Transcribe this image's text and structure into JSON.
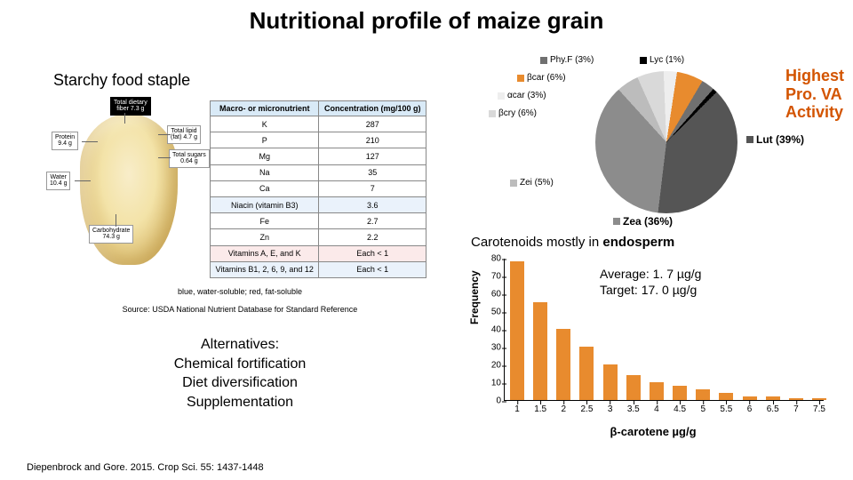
{
  "title": "Nutritional profile of maize grain",
  "subheading_left": "Starchy food staple",
  "kernel_tags": {
    "total_fiber": {
      "label": "Total dietary\nfiber 7.3 g",
      "cls": "black"
    },
    "protein": {
      "label": "Protein\n9.4 g"
    },
    "water": {
      "label": "Water\n10.4 g"
    },
    "total_lipid": {
      "label": "Total lipid\n(fat) 4.7 g"
    },
    "total_sugars": {
      "label": "Total sugars\n0.64 g"
    },
    "carbohydrate": {
      "label": "Carbohydrate\n74.3 g"
    }
  },
  "nutrient_table": {
    "headers": [
      "Macro- or micronutrient",
      "Concentration (mg/100 g)"
    ],
    "rows": [
      {
        "cells": [
          "K",
          "287"
        ],
        "cls": ""
      },
      {
        "cells": [
          "P",
          "210"
        ],
        "cls": ""
      },
      {
        "cells": [
          "Mg",
          "127"
        ],
        "cls": ""
      },
      {
        "cells": [
          "Na",
          "35"
        ],
        "cls": ""
      },
      {
        "cells": [
          "Ca",
          "7"
        ],
        "cls": ""
      },
      {
        "cells": [
          "Niacin (vitamin B3)",
          "3.6"
        ],
        "cls": "row-blue"
      },
      {
        "cells": [
          "Fe",
          "2.7"
        ],
        "cls": ""
      },
      {
        "cells": [
          "Zn",
          "2.2"
        ],
        "cls": ""
      },
      {
        "cells": [
          "Vitamins A, E, and K",
          "Each < 1"
        ],
        "cls": "row-red"
      },
      {
        "cells": [
          "Vitamins B1, 2, 6, 9, and 12",
          "Each < 1"
        ],
        "cls": "row-blue"
      }
    ]
  },
  "footnote1": "blue, water-soluble; red, fat-soluble",
  "footnote2": "Source: USDA National Nutrient Database for Standard Reference",
  "alternatives_title": "Alternatives:",
  "alternatives_items": [
    "Chemical fortification",
    "Diet diversification",
    "Supplementation"
  ],
  "citation": "Diepenbrock and Gore. 2015. Crop Sci. 55: 1437-1448",
  "pro_va_label": "Highest\nPro. VA\nActivity",
  "pie_chart": {
    "type": "pie",
    "background": "#ffffff",
    "slices": [
      {
        "label": "Lut (39%)",
        "value": 39,
        "color": "#555555"
      },
      {
        "label": "Zea (36%)",
        "value": 36,
        "color": "#8c8c8c"
      },
      {
        "label": "Zei (5%)",
        "value": 5,
        "color": "#bcbcbc"
      },
      {
        "label": "βcry (6%)",
        "value": 6,
        "color": "#d9d9d9"
      },
      {
        "label": "αcar (3%)",
        "value": 3,
        "color": "#eeeeee"
      },
      {
        "label": "βcar (6%)",
        "value": 6,
        "color": "#e88b2e"
      },
      {
        "label": "Phy.F (3%)",
        "value": 3,
        "color": "#707070"
      },
      {
        "label": "Lyc (1%)",
        "value": 1,
        "color": "#000000"
      }
    ]
  },
  "carotenoid_caption_pre": "Carotenoids mostly in ",
  "carotenoid_caption_bold": "endosperm",
  "bar_chart": {
    "type": "histogram",
    "xlabel": "β-carotene µg/g",
    "ylabel": "Frequency",
    "bar_color": "#e88b2e",
    "axis_color": "#000000",
    "background": "#ffffff",
    "x_ticks": [
      1,
      1.5,
      2,
      2.5,
      3,
      3.5,
      4,
      4.5,
      5,
      5.5,
      6,
      6.5,
      7,
      7.5
    ],
    "y_ticks": [
      0,
      10,
      20,
      30,
      40,
      50,
      60,
      70,
      80
    ],
    "ylim": [
      0,
      80
    ],
    "bars": [
      {
        "x": 1,
        "y": 78
      },
      {
        "x": 1.5,
        "y": 55
      },
      {
        "x": 2,
        "y": 40
      },
      {
        "x": 2.5,
        "y": 30
      },
      {
        "x": 3,
        "y": 20
      },
      {
        "x": 3.5,
        "y": 14
      },
      {
        "x": 4,
        "y": 10
      },
      {
        "x": 4.5,
        "y": 8
      },
      {
        "x": 5,
        "y": 6
      },
      {
        "x": 5.5,
        "y": 4
      },
      {
        "x": 6,
        "y": 2
      },
      {
        "x": 6.5,
        "y": 2
      },
      {
        "x": 7,
        "y": 1
      },
      {
        "x": 7.5,
        "y": 1
      }
    ],
    "avg_label": "Average: 1. 7 µg/g",
    "target_label": "Target:  17. 0 µg/g"
  }
}
